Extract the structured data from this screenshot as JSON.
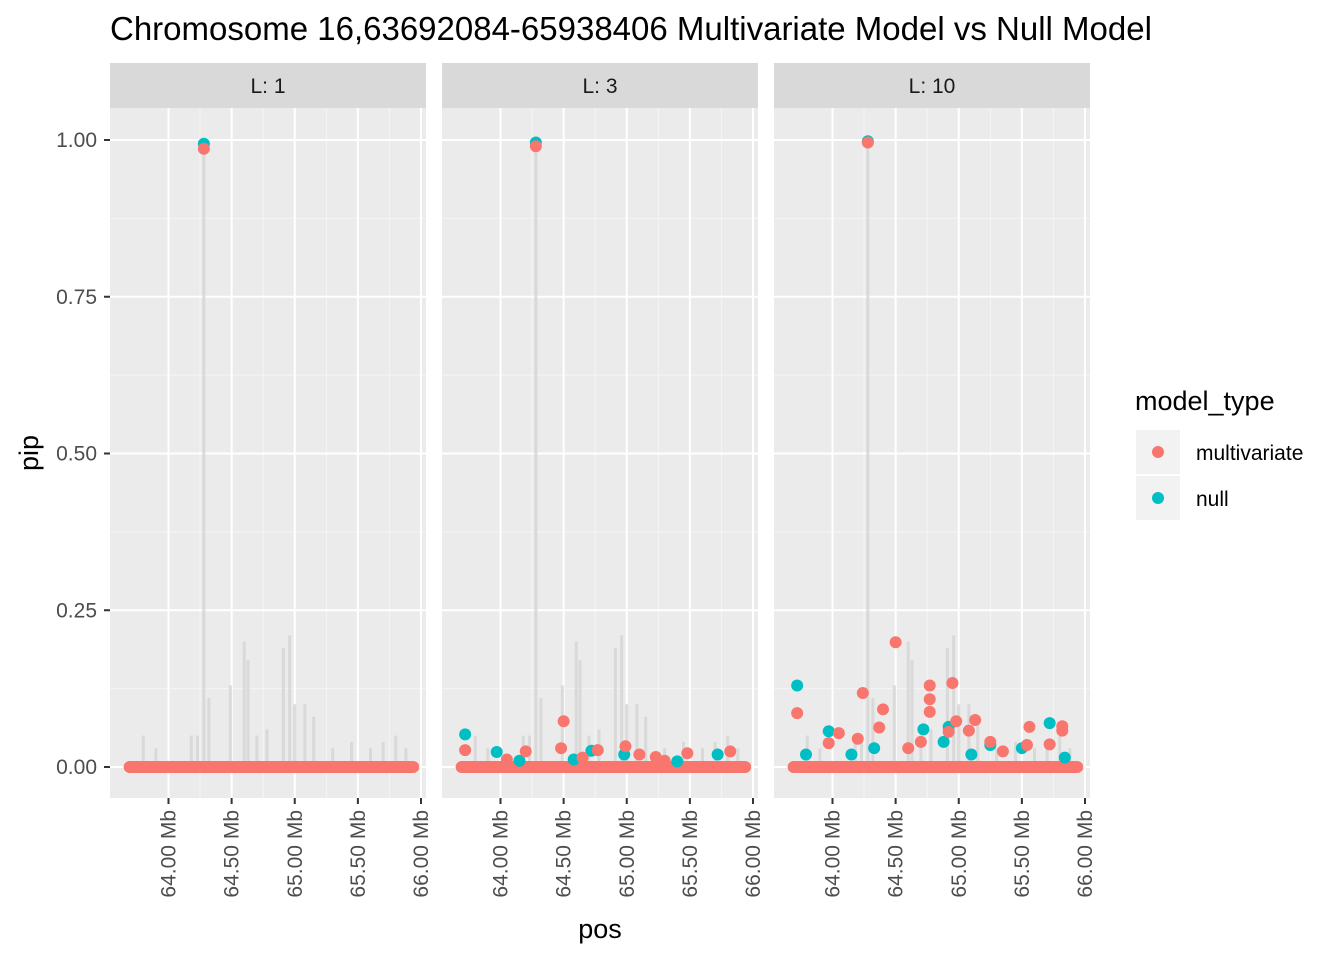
{
  "chart_data": {
    "type": "scatter",
    "title": "Chromosome 16,63692084-65938406 Multivariate Model vs Null Model",
    "xlabel": "pos",
    "ylabel": "pip",
    "xlim": [
      63692084,
      65938406
    ],
    "ylim": [
      0,
      1
    ],
    "x_ticks": [
      64000000,
      64500000,
      65000000,
      65500000,
      66000000
    ],
    "x_tick_labels": [
      "64.00 Mb",
      "64.50 Mb",
      "65.00 Mb",
      "65.50 Mb",
      "66.00 Mb"
    ],
    "y_ticks": [
      0,
      0.25,
      0.5,
      0.75,
      1
    ],
    "y_tick_labels": [
      "0.00",
      "0.25",
      "0.50",
      "0.75",
      "1.00"
    ],
    "grid": true,
    "legend": {
      "title": "model_type",
      "position": "right",
      "entries": [
        {
          "name": "multivariate",
          "color": "#f8766d"
        },
        {
          "name": "null",
          "color": "#00bfc4"
        }
      ]
    },
    "colors": {
      "multivariate": "#f8766d",
      "null": "#00bfc4"
    },
    "background_bars": [
      {
        "x": 63800000,
        "y": 0.05
      },
      {
        "x": 63900000,
        "y": 0.03
      },
      {
        "x": 64180000,
        "y": 0.05
      },
      {
        "x": 64230000,
        "y": 0.05
      },
      {
        "x": 64280000,
        "y": 1.0
      },
      {
        "x": 64320000,
        "y": 0.11
      },
      {
        "x": 64490000,
        "y": 0.13
      },
      {
        "x": 64600000,
        "y": 0.2
      },
      {
        "x": 64630000,
        "y": 0.17
      },
      {
        "x": 64700000,
        "y": 0.05
      },
      {
        "x": 64780000,
        "y": 0.06
      },
      {
        "x": 64910000,
        "y": 0.19
      },
      {
        "x": 64960000,
        "y": 0.21
      },
      {
        "x": 65000000,
        "y": 0.1
      },
      {
        "x": 65080000,
        "y": 0.1
      },
      {
        "x": 65150000,
        "y": 0.08
      },
      {
        "x": 65300000,
        "y": 0.03
      },
      {
        "x": 65450000,
        "y": 0.04
      },
      {
        "x": 65600000,
        "y": 0.03
      },
      {
        "x": 65700000,
        "y": 0.04
      },
      {
        "x": 65800000,
        "y": 0.05
      },
      {
        "x": 65880000,
        "y": 0.03
      }
    ],
    "panels": [
      {
        "label": "L: 1",
        "series": [
          {
            "name": "null",
            "points": [
              {
                "x": 64280000,
                "y": 0.994
              }
            ]
          },
          {
            "name": "multivariate",
            "points": [
              {
                "x": 64280000,
                "y": 0.986
              }
            ]
          }
        ]
      },
      {
        "label": "L: 3",
        "series": [
          {
            "name": "null",
            "points": [
              {
                "x": 64280000,
                "y": 0.996
              },
              {
                "x": 63720000,
                "y": 0.052
              },
              {
                "x": 63970000,
                "y": 0.024
              },
              {
                "x": 64720000,
                "y": 0.026
              },
              {
                "x": 64980000,
                "y": 0.02
              },
              {
                "x": 65720000,
                "y": 0.02
              },
              {
                "x": 64150000,
                "y": 0.01
              },
              {
                "x": 64580000,
                "y": 0.012
              },
              {
                "x": 65400000,
                "y": 0.009
              }
            ]
          },
          {
            "name": "multivariate",
            "points": [
              {
                "x": 64280000,
                "y": 0.99
              },
              {
                "x": 63720000,
                "y": 0.027
              },
              {
                "x": 64200000,
                "y": 0.025
              },
              {
                "x": 64480000,
                "y": 0.03
              },
              {
                "x": 64500000,
                "y": 0.073
              },
              {
                "x": 64770000,
                "y": 0.027
              },
              {
                "x": 64990000,
                "y": 0.033
              },
              {
                "x": 65100000,
                "y": 0.02
              },
              {
                "x": 65230000,
                "y": 0.016
              },
              {
                "x": 65480000,
                "y": 0.022
              },
              {
                "x": 65820000,
                "y": 0.025
              },
              {
                "x": 64050000,
                "y": 0.012
              },
              {
                "x": 64650000,
                "y": 0.015
              },
              {
                "x": 65300000,
                "y": 0.01
              }
            ]
          }
        ]
      },
      {
        "label": "L: 10",
        "series": [
          {
            "name": "null",
            "points": [
              {
                "x": 64280000,
                "y": 0.998
              },
              {
                "x": 63720000,
                "y": 0.13
              },
              {
                "x": 63790000,
                "y": 0.02
              },
              {
                "x": 63970000,
                "y": 0.057
              },
              {
                "x": 64150000,
                "y": 0.02
              },
              {
                "x": 64720000,
                "y": 0.06
              },
              {
                "x": 64880000,
                "y": 0.04
              },
              {
                "x": 64920000,
                "y": 0.064
              },
              {
                "x": 65250000,
                "y": 0.035
              },
              {
                "x": 65500000,
                "y": 0.03
              },
              {
                "x": 65720000,
                "y": 0.07
              },
              {
                "x": 65840000,
                "y": 0.015
              },
              {
                "x": 64330000,
                "y": 0.03
              },
              {
                "x": 65100000,
                "y": 0.02
              }
            ]
          },
          {
            "name": "multivariate",
            "points": [
              {
                "x": 64280000,
                "y": 0.996
              },
              {
                "x": 63720000,
                "y": 0.086
              },
              {
                "x": 63970000,
                "y": 0.038
              },
              {
                "x": 64050000,
                "y": 0.054
              },
              {
                "x": 64200000,
                "y": 0.045
              },
              {
                "x": 64240000,
                "y": 0.118
              },
              {
                "x": 64370000,
                "y": 0.063
              },
              {
                "x": 64400000,
                "y": 0.092
              },
              {
                "x": 64500000,
                "y": 0.199
              },
              {
                "x": 64700000,
                "y": 0.04
              },
              {
                "x": 64770000,
                "y": 0.13
              },
              {
                "x": 64770000,
                "y": 0.108
              },
              {
                "x": 64770000,
                "y": 0.088
              },
              {
                "x": 64920000,
                "y": 0.056
              },
              {
                "x": 64950000,
                "y": 0.134
              },
              {
                "x": 64980000,
                "y": 0.073
              },
              {
                "x": 65080000,
                "y": 0.058
              },
              {
                "x": 65130000,
                "y": 0.075
              },
              {
                "x": 65250000,
                "y": 0.04
              },
              {
                "x": 65560000,
                "y": 0.064
              },
              {
                "x": 65540000,
                "y": 0.035
              },
              {
                "x": 65720000,
                "y": 0.036
              },
              {
                "x": 65820000,
                "y": 0.065
              },
              {
                "x": 65820000,
                "y": 0.058
              },
              {
                "x": 64600000,
                "y": 0.03
              },
              {
                "x": 65350000,
                "y": 0.025
              }
            ]
          }
        ]
      }
    ]
  }
}
